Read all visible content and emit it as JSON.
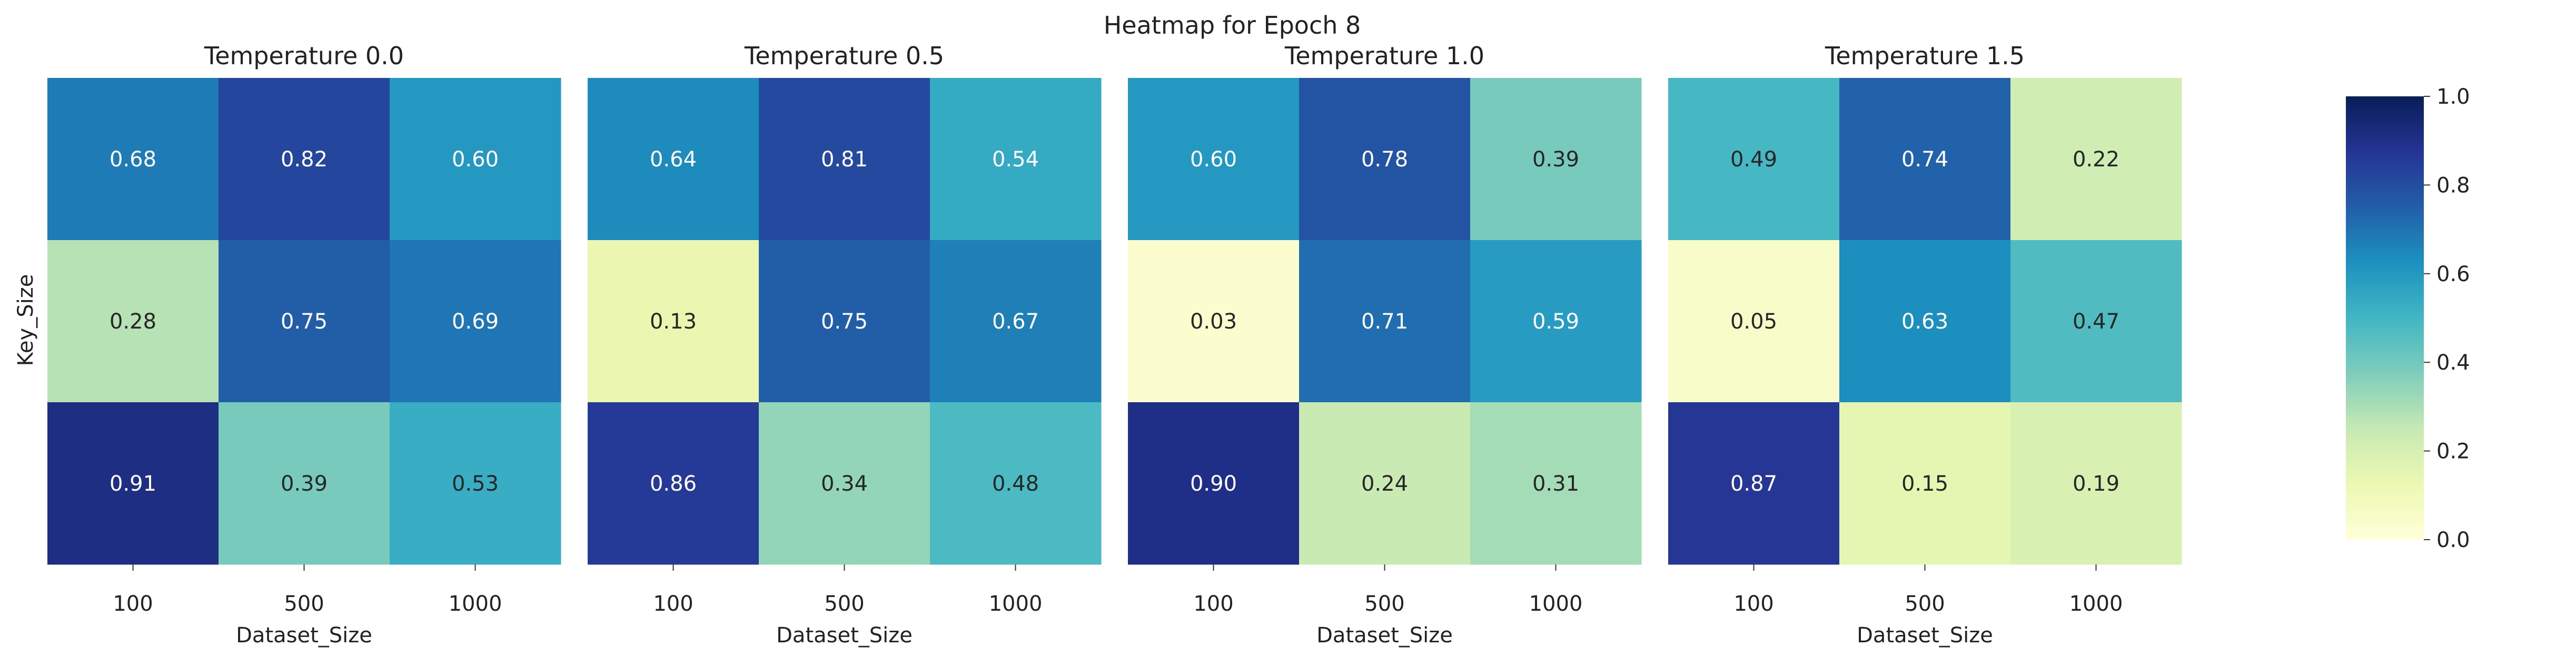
{
  "chart_data": {
    "type": "heatmap",
    "title": "Heatmap for Epoch 8",
    "ylabel": "Key_Size",
    "xlabel": "Dataset_Size",
    "x_categories": [
      "100",
      "500",
      "1000"
    ],
    "y_categories": [],
    "colormap": "YlGnBu",
    "value_range": [
      0.0,
      1.0
    ],
    "colorbar_ticks": [
      "0.0",
      "0.2",
      "0.4",
      "0.6",
      "0.8",
      "1.0"
    ],
    "panels": [
      {
        "title": "Temperature 0.0",
        "values": [
          [
            0.68,
            0.82,
            0.6
          ],
          [
            0.28,
            0.75,
            0.69
          ],
          [
            0.91,
            0.39,
            0.53
          ]
        ]
      },
      {
        "title": "Temperature 0.5",
        "values": [
          [
            0.64,
            0.81,
            0.54
          ],
          [
            0.13,
            0.75,
            0.67
          ],
          [
            0.86,
            0.34,
            0.48
          ]
        ]
      },
      {
        "title": "Temperature 1.0",
        "values": [
          [
            0.6,
            0.78,
            0.39
          ],
          [
            0.03,
            0.71,
            0.59
          ],
          [
            0.9,
            0.24,
            0.31
          ]
        ]
      },
      {
        "title": "Temperature 1.5",
        "values": [
          [
            0.49,
            0.74,
            0.22
          ],
          [
            0.05,
            0.63,
            0.47
          ],
          [
            0.87,
            0.15,
            0.19
          ]
        ]
      }
    ]
  }
}
